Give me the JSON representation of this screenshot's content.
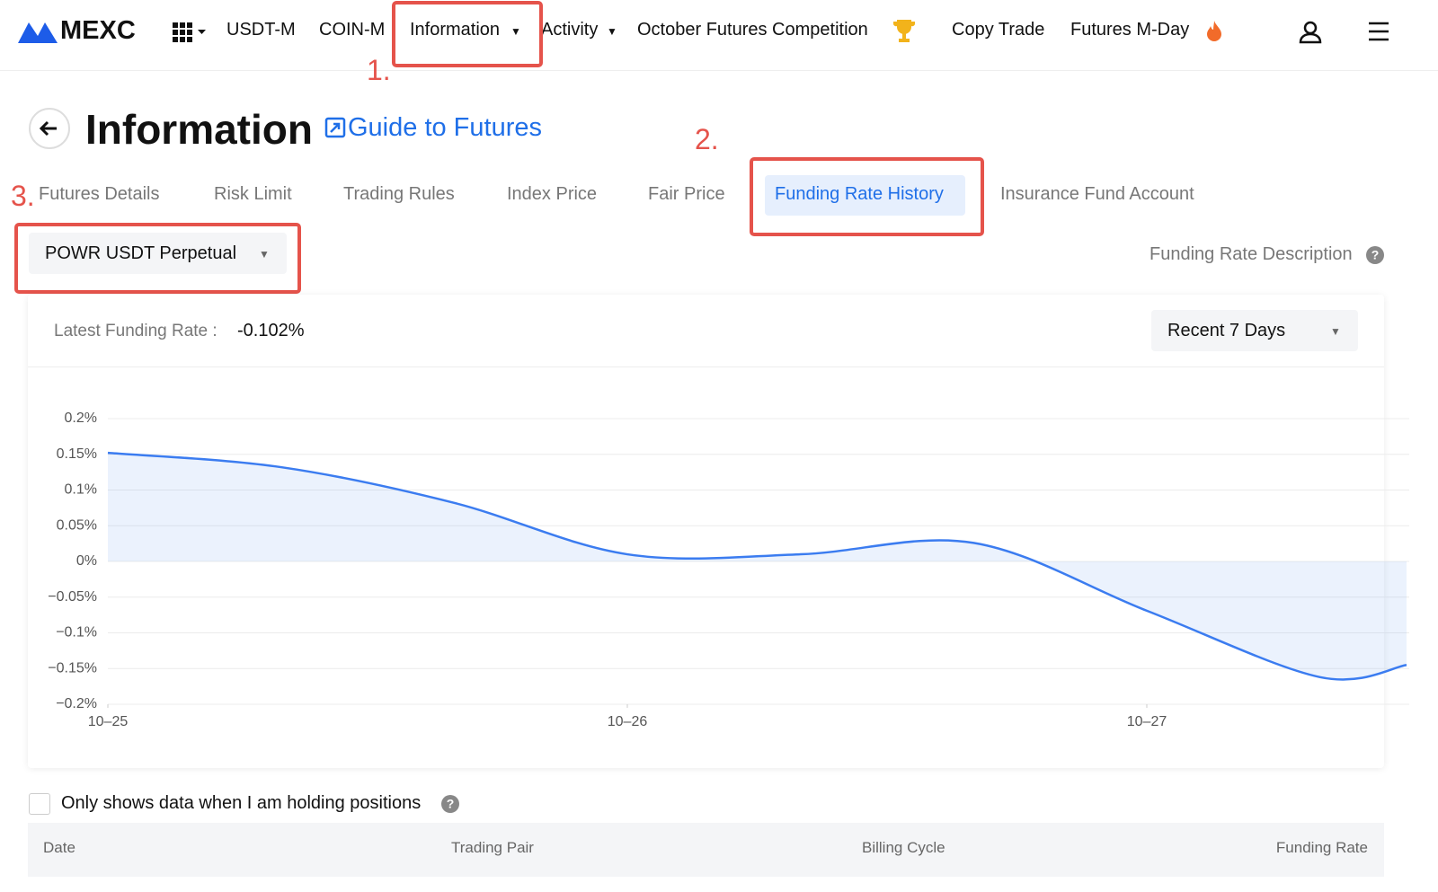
{
  "nav": {
    "logo": "MEXC",
    "items": [
      "USDT-M",
      "COIN-M",
      "Information",
      "Activity",
      "October Futures Competition",
      "Copy Trade",
      "Futures M-Day"
    ]
  },
  "annotations": [
    "1.",
    "2.",
    "3."
  ],
  "header": {
    "title": "Information",
    "guide": "Guide to Futures"
  },
  "tabs": [
    "Futures Details",
    "Risk Limit",
    "Trading Rules",
    "Index Price",
    "Fair Price",
    "Funding Rate History",
    "Insurance Fund Account"
  ],
  "selector": "POWR USDT Perpetual",
  "description_link": "Funding Rate Description",
  "latest": {
    "label": "Latest Funding Rate :",
    "value": "-0.102%"
  },
  "range": "Recent 7 Days",
  "chart_data": {
    "type": "line",
    "color": "#3b7cf0",
    "grid": true,
    "x": [
      0,
      0.3333,
      0.6667,
      1,
      1.3333,
      1.6667,
      2,
      2.3333,
      2.5
    ],
    "values": [
      0.152,
      0.132,
      0.082,
      0.01,
      0.01,
      0.026,
      -0.069,
      -0.162,
      -0.145
    ],
    "xlim": [
      0,
      2.5
    ],
    "xticks": [
      {
        "value": 0,
        "label": "10–25"
      },
      {
        "value": 1,
        "label": "10–26"
      },
      {
        "value": 2,
        "label": "10–27"
      }
    ],
    "ylim": [
      -0.2,
      0.2
    ],
    "yticks": [
      {
        "value": 0.2,
        "label": "0.2%"
      },
      {
        "value": 0.15,
        "label": "0.15%"
      },
      {
        "value": 0.1,
        "label": "0.1%"
      },
      {
        "value": 0.05,
        "label": "0.05%"
      },
      {
        "value": 0,
        "label": "0%"
      },
      {
        "value": -0.05,
        "label": "−0.05%"
      },
      {
        "value": -0.1,
        "label": "−0.1%"
      },
      {
        "value": -0.15,
        "label": "−0.15%"
      },
      {
        "value": -0.2,
        "label": "−0.2%"
      }
    ]
  },
  "filter": "Only shows data when I am holding positions",
  "table": {
    "headers": [
      "Date",
      "Trading Pair",
      "Billing Cycle",
      "Funding Rate"
    ]
  }
}
